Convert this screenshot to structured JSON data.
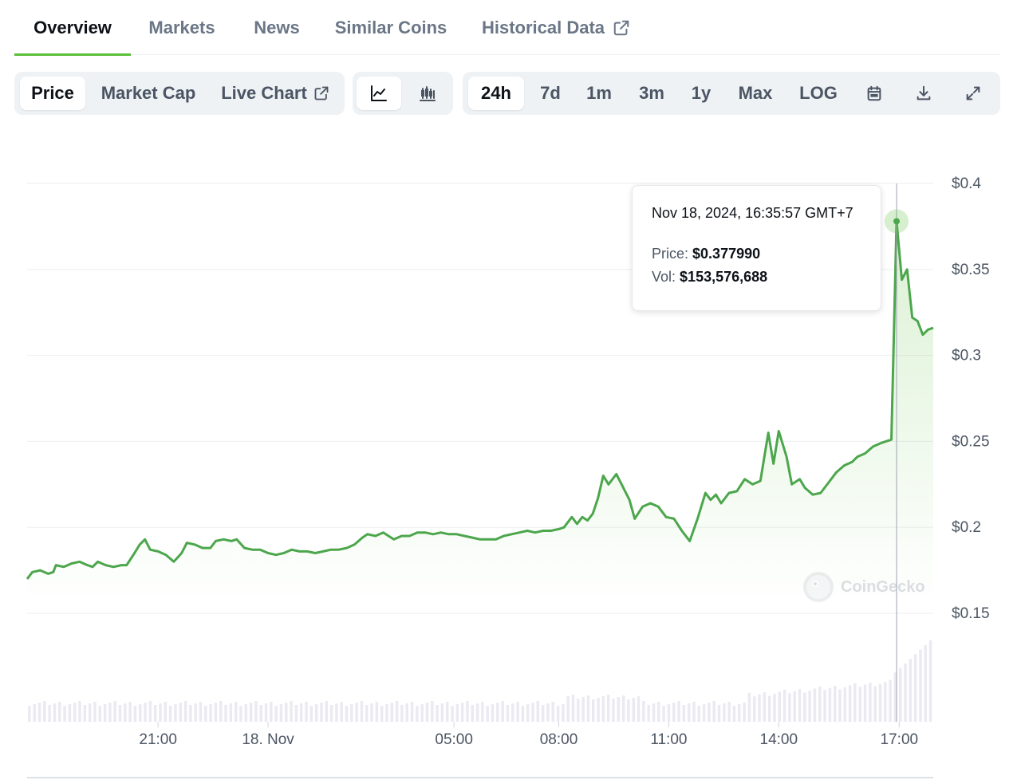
{
  "tabs": [
    {
      "label": "Overview",
      "active": true
    },
    {
      "label": "Markets",
      "active": false
    },
    {
      "label": "News",
      "active": false
    },
    {
      "label": "Similar Coins",
      "active": false
    },
    {
      "label": "Historical Data",
      "active": false,
      "icon": "external-link-icon"
    }
  ],
  "toolbar": {
    "metric": [
      {
        "label": "Price",
        "selected": true
      },
      {
        "label": "Market Cap",
        "selected": false
      },
      {
        "label": "Live Chart",
        "selected": false,
        "icon": "external-link-icon"
      }
    ],
    "chart_type": [
      {
        "icon": "line-chart-icon",
        "selected": true
      },
      {
        "icon": "candlestick-chart-icon",
        "selected": false
      }
    ],
    "range": [
      {
        "label": "24h",
        "selected": true
      },
      {
        "label": "7d",
        "selected": false
      },
      {
        "label": "1m",
        "selected": false
      },
      {
        "label": "3m",
        "selected": false
      },
      {
        "label": "1y",
        "selected": false
      },
      {
        "label": "Max",
        "selected": false
      },
      {
        "label": "LOG",
        "selected": false
      }
    ],
    "actions": [
      {
        "icon": "calendar-icon"
      },
      {
        "icon": "download-icon"
      },
      {
        "icon": "expand-icon"
      }
    ]
  },
  "tooltip": {
    "date": "Nov 18, 2024, 16:35:57 GMT+7",
    "price_label": "Price:",
    "price_value": "$0.377990",
    "vol_label": "Vol:",
    "vol_value": "$153,576,688"
  },
  "watermark": "CoinGecko",
  "colors": {
    "accent": "#5cbf3a",
    "line": "#4ca64c",
    "grid": "#eceef1",
    "volume": "#ebeaf2"
  },
  "chart_data": {
    "type": "line",
    "y_ticks": [
      "$0.4",
      "$0.35",
      "$0.3",
      "$0.25",
      "$0.2",
      "$0.15"
    ],
    "y_tick_values": [
      0.4,
      0.35,
      0.3,
      0.25,
      0.2,
      0.15
    ],
    "ylim": [
      0.15,
      0.4
    ],
    "x_ticks": [
      {
        "label": "21:00",
        "t": 5.0
      },
      {
        "label": "18. Nov",
        "t": 9.2
      },
      {
        "label": "05:00",
        "t": 16.3
      },
      {
        "label": "08:00",
        "t": 20.3
      },
      {
        "label": "11:00",
        "t": 24.5
      },
      {
        "label": "14:00",
        "t": 28.7
      },
      {
        "label": "17:00",
        "t": 33.3
      }
    ],
    "xlim": [
      0,
      33.4
    ],
    "series": [
      {
        "values": [
          [
            0.0,
            0.17
          ],
          [
            0.2,
            0.174
          ],
          [
            0.5,
            0.175
          ],
          [
            0.8,
            0.173
          ],
          [
            1.0,
            0.174
          ],
          [
            1.1,
            0.178
          ],
          [
            1.4,
            0.177
          ],
          [
            1.7,
            0.179
          ],
          [
            2.0,
            0.18
          ],
          [
            2.3,
            0.178
          ],
          [
            2.5,
            0.177
          ],
          [
            2.7,
            0.18
          ],
          [
            3.0,
            0.178
          ],
          [
            3.3,
            0.177
          ],
          [
            3.6,
            0.178
          ],
          [
            3.8,
            0.178
          ],
          [
            4.1,
            0.185
          ],
          [
            4.3,
            0.19
          ],
          [
            4.5,
            0.193
          ],
          [
            4.7,
            0.187
          ],
          [
            5.0,
            0.186
          ],
          [
            5.3,
            0.184
          ],
          [
            5.6,
            0.18
          ],
          [
            5.9,
            0.185
          ],
          [
            6.1,
            0.191
          ],
          [
            6.4,
            0.19
          ],
          [
            6.7,
            0.188
          ],
          [
            7.0,
            0.188
          ],
          [
            7.2,
            0.192
          ],
          [
            7.5,
            0.193
          ],
          [
            7.8,
            0.192
          ],
          [
            8.0,
            0.193
          ],
          [
            8.3,
            0.188
          ],
          [
            8.6,
            0.187
          ],
          [
            8.9,
            0.187
          ],
          [
            9.2,
            0.185
          ],
          [
            9.5,
            0.184
          ],
          [
            9.8,
            0.185
          ],
          [
            10.1,
            0.187
          ],
          [
            10.4,
            0.186
          ],
          [
            10.7,
            0.186
          ],
          [
            11.0,
            0.185
          ],
          [
            11.3,
            0.186
          ],
          [
            11.6,
            0.187
          ],
          [
            11.9,
            0.187
          ],
          [
            12.2,
            0.188
          ],
          [
            12.5,
            0.19
          ],
          [
            12.8,
            0.194
          ],
          [
            13.0,
            0.196
          ],
          [
            13.3,
            0.195
          ],
          [
            13.6,
            0.197
          ],
          [
            13.8,
            0.195
          ],
          [
            14.0,
            0.193
          ],
          [
            14.3,
            0.195
          ],
          [
            14.6,
            0.195
          ],
          [
            14.9,
            0.197
          ],
          [
            15.2,
            0.197
          ],
          [
            15.5,
            0.196
          ],
          [
            15.8,
            0.197
          ],
          [
            16.1,
            0.196
          ],
          [
            16.4,
            0.196
          ],
          [
            16.7,
            0.195
          ],
          [
            17.0,
            0.194
          ],
          [
            17.3,
            0.193
          ],
          [
            17.6,
            0.193
          ],
          [
            17.9,
            0.193
          ],
          [
            18.2,
            0.195
          ],
          [
            18.5,
            0.196
          ],
          [
            18.8,
            0.197
          ],
          [
            19.1,
            0.198
          ],
          [
            19.4,
            0.197
          ],
          [
            19.7,
            0.198
          ],
          [
            20.0,
            0.198
          ],
          [
            20.3,
            0.199
          ],
          [
            20.5,
            0.2
          ],
          [
            20.8,
            0.206
          ],
          [
            21.0,
            0.202
          ],
          [
            21.2,
            0.206
          ],
          [
            21.4,
            0.204
          ],
          [
            21.6,
            0.208
          ],
          [
            21.8,
            0.217
          ],
          [
            22.0,
            0.23
          ],
          [
            22.2,
            0.225
          ],
          [
            22.5,
            0.231
          ],
          [
            22.7,
            0.225
          ],
          [
            23.0,
            0.216
          ],
          [
            23.2,
            0.205
          ],
          [
            23.5,
            0.212
          ],
          [
            23.8,
            0.214
          ],
          [
            24.1,
            0.212
          ],
          [
            24.4,
            0.206
          ],
          [
            24.7,
            0.205
          ],
          [
            25.0,
            0.198
          ],
          [
            25.3,
            0.192
          ],
          [
            25.6,
            0.205
          ],
          [
            25.9,
            0.22
          ],
          [
            26.1,
            0.216
          ],
          [
            26.3,
            0.219
          ],
          [
            26.5,
            0.214
          ],
          [
            26.8,
            0.22
          ],
          [
            27.1,
            0.221
          ],
          [
            27.4,
            0.228
          ],
          [
            27.7,
            0.225
          ],
          [
            28.0,
            0.227
          ],
          [
            28.3,
            0.255
          ],
          [
            28.5,
            0.237
          ],
          [
            28.7,
            0.256
          ],
          [
            29.0,
            0.241
          ],
          [
            29.2,
            0.225
          ],
          [
            29.5,
            0.228
          ],
          [
            29.7,
            0.223
          ],
          [
            30.0,
            0.219
          ],
          [
            30.3,
            0.22
          ],
          [
            30.6,
            0.226
          ],
          [
            30.9,
            0.232
          ],
          [
            31.2,
            0.236
          ],
          [
            31.5,
            0.238
          ],
          [
            31.7,
            0.241
          ],
          [
            32.0,
            0.243
          ],
          [
            32.3,
            0.247
          ],
          [
            32.6,
            0.249
          ],
          [
            33.0,
            0.251
          ],
          [
            33.2,
            0.378
          ],
          [
            33.4,
            0.344
          ],
          [
            33.6,
            0.35
          ],
          [
            33.8,
            0.322
          ],
          [
            34.0,
            0.32
          ],
          [
            34.2,
            0.312
          ],
          [
            34.4,
            0.315
          ],
          [
            34.6,
            0.316
          ]
        ]
      }
    ],
    "highlight": {
      "t": 33.2,
      "value": 0.37799
    },
    "grid": true
  }
}
